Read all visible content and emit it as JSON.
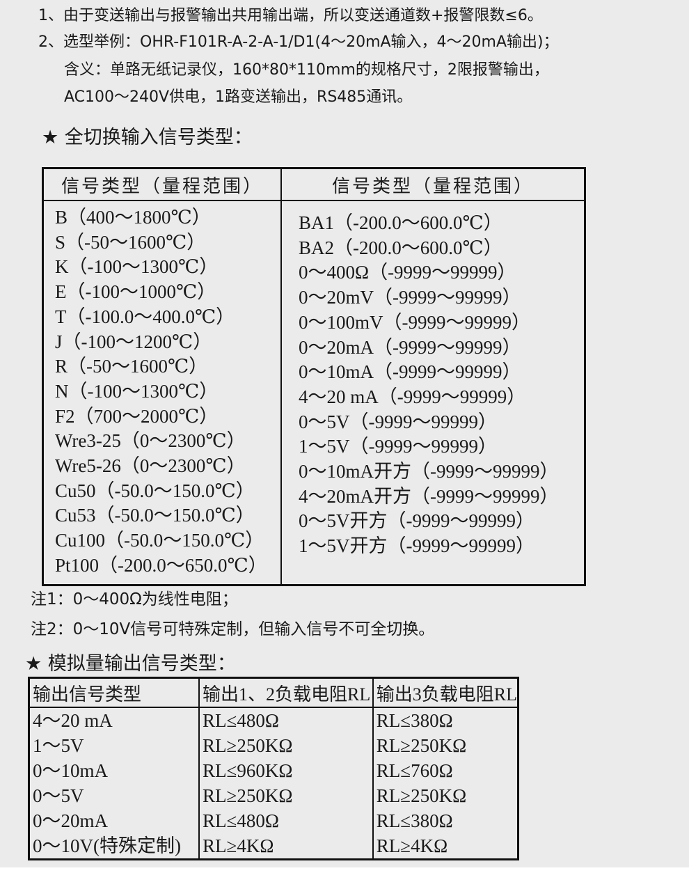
{
  "notes_top": [
    "1、由于变送输出与报警输出共用输出端，所以变送通道数+报警限数≤6。",
    "2、选型举例：OHR-F101R-A-2-A-1/D1(4～20mA输入，4～20mA输出)；",
    "含义：单路无纸记录仪，160*80*110mm的规格尺寸，2限报警输出，",
    "AC100～240V供电，1路变送输出，RS485通讯。"
  ],
  "section1": {
    "title": "★ 全切换输入信号类型：",
    "headers": [
      "信号类型（量程范围）",
      "信号类型（量程范围）"
    ],
    "left": [
      "B（400～1800℃）",
      "S（-50～1600℃）",
      "K（-100～1300℃）",
      "E（-100～1000℃）",
      "T（-100.0～400.0℃）",
      "J（-100～1200℃）",
      "R（-50～1600℃）",
      "N（-100～1300℃）",
      "F2（700～2000℃）",
      "Wre3-25（0～2300℃）",
      "Wre5-26（0～2300℃）",
      "Cu50（-50.0～150.0℃）",
      "Cu53（-50.0～150.0℃）",
      "Cu100（-50.0～150.0℃）",
      "Pt100（-200.0～650.0℃）"
    ],
    "right": [
      "BA1（-200.0～600.0℃）",
      "BA2（-200.0～600.0℃）",
      "0～400Ω（-9999～99999）",
      "0～20mV（-9999～99999）",
      "0～100mV（-9999～99999）",
      "0～20mA（-9999～99999）",
      "0～10mA（-9999～99999）",
      "4～20 mA（-9999～99999）",
      "0～5V（-9999～99999）",
      "1～5V（-9999～99999）",
      "0～10mA开方（-9999～99999）",
      "4～20mA开方（-9999～99999）",
      "0～5V开方（-9999～99999）",
      "1～5V开方（-9999～99999）"
    ],
    "notes": [
      "注1：0～400Ω为线性电阻；",
      "注2：0～10V信号可特殊定制，但输入信号不可全切换。"
    ]
  },
  "section2": {
    "title": "★ 模拟量输出信号类型：",
    "headers": [
      "输出信号类型",
      "输出1、2负载电阻RL",
      "输出3负载电阻RL"
    ],
    "rows": [
      [
        "4～20 mA",
        "RL≤480Ω",
        "RL≤380Ω"
      ],
      [
        "1～5V",
        "RL≥250KΩ",
        "RL≥250KΩ"
      ],
      [
        "0～10mA",
        "RL≤960KΩ",
        "RL≤760Ω"
      ],
      [
        "0～5V",
        "RL≥250KΩ",
        "RL≥250KΩ"
      ],
      [
        "0～20mA",
        "RL≤480Ω",
        "RL≤380Ω"
      ],
      [
        "0～10V(特殊定制)",
        "RL≥4KΩ",
        "RL≥4KΩ"
      ]
    ]
  }
}
